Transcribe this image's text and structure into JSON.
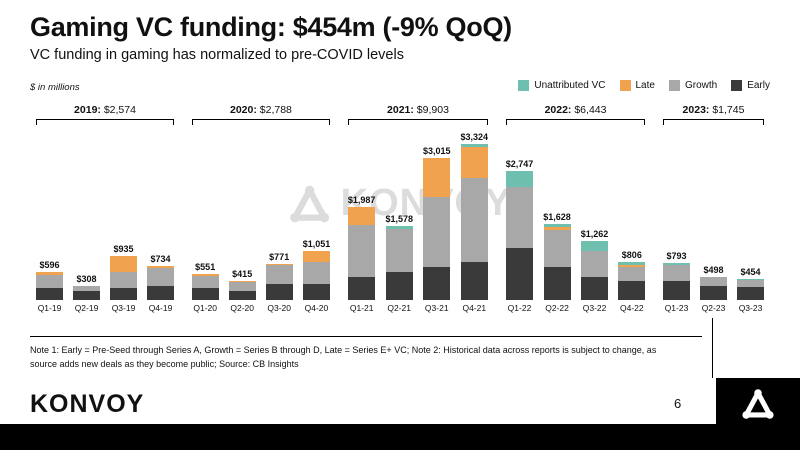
{
  "slide": {
    "title": "Gaming VC funding: $454m (-9% QoQ)",
    "subtitle": "VC funding in gaming has normalized to pre-COVID levels",
    "note": "Note 1: Early = Pre-Seed through Series A, Growth = Series B through D, Late = Series E+ VC; Note 2: Historical data across reports is subject to change, as source adds new deals as they become public; Source: CB Insights",
    "footer_wordmark": "KONVOY",
    "watermark": "KONVOY",
    "page_number": "6"
  },
  "colors": {
    "early": "#3a3a3a",
    "growth": "#a8a8a8",
    "late": "#f0a24e",
    "unattributed": "#6fbfae",
    "accent_black": "#000000"
  },
  "chart_data": {
    "type": "bar",
    "stacked": true,
    "title": "Gaming VC funding: $454m (-9% QoQ)",
    "ylabel": "$ in millions",
    "ylim": [
      0,
      3400
    ],
    "grid": false,
    "legend_position": "top-right",
    "legend": [
      {
        "label": "Unattributed VC",
        "color": "#6fbfae"
      },
      {
        "label": "Late",
        "color": "#f0a24e"
      },
      {
        "label": "Growth",
        "color": "#a8a8a8"
      },
      {
        "label": "Early",
        "color": "#3a3a3a"
      }
    ],
    "categories": [
      "Q1-19",
      "Q2-19",
      "Q3-19",
      "Q4-19",
      "Q1-20",
      "Q2-20",
      "Q3-20",
      "Q4-20",
      "Q1-21",
      "Q2-21",
      "Q3-21",
      "Q4-21",
      "Q1-22",
      "Q2-22",
      "Q3-22",
      "Q4-22",
      "Q1-23",
      "Q2-23",
      "Q3-23"
    ],
    "totals": [
      596,
      308,
      935,
      734,
      551,
      415,
      771,
      1051,
      1987,
      1578,
      3015,
      3324,
      2747,
      1628,
      1262,
      806,
      793,
      498,
      454
    ],
    "totals_labels": [
      "$596",
      "$308",
      "$935",
      "$734",
      "$551",
      "$415",
      "$771",
      "$1,051",
      "$1,987",
      "$1,578",
      "$3,015",
      "$3,324",
      "$2,747",
      "$1,628",
      "$1,262",
      "$806",
      "$793",
      "$498",
      "$454"
    ],
    "series": [
      {
        "name": "Early",
        "key": "early",
        "color": "#3a3a3a",
        "values": [
          250,
          200,
          250,
          300,
          250,
          200,
          350,
          350,
          500,
          600,
          700,
          800,
          1100,
          700,
          500,
          400,
          400,
          300,
          280
        ]
      },
      {
        "name": "Growth",
        "key": "growth",
        "color": "#a8a8a8",
        "values": [
          280,
          108,
          350,
          380,
          250,
          180,
          400,
          450,
          1100,
          900,
          1500,
          1800,
          1300,
          800,
          550,
          300,
          350,
          180,
          150
        ]
      },
      {
        "name": "Late",
        "key": "late",
        "color": "#f0a24e",
        "values": [
          66,
          0,
          335,
          54,
          51,
          35,
          21,
          251,
          387,
          0,
          815,
          650,
          0,
          60,
          0,
          50,
          0,
          0,
          0
        ]
      },
      {
        "name": "Unattributed VC",
        "key": "unattributed",
        "color": "#6fbfae",
        "values": [
          0,
          0,
          0,
          0,
          0,
          0,
          0,
          0,
          0,
          78,
          0,
          74,
          347,
          68,
          212,
          56,
          43,
          18,
          24
        ]
      }
    ],
    "groups": [
      {
        "year": "2019:",
        "total": "$2,574",
        "count": 4
      },
      {
        "year": "2020:",
        "total": "$2,788",
        "count": 4
      },
      {
        "year": "2021:",
        "total": "$9,903",
        "count": 4
      },
      {
        "year": "2022:",
        "total": "$6,443",
        "count": 4
      },
      {
        "year": "2023:",
        "total": "$1,745",
        "count": 3
      }
    ]
  }
}
